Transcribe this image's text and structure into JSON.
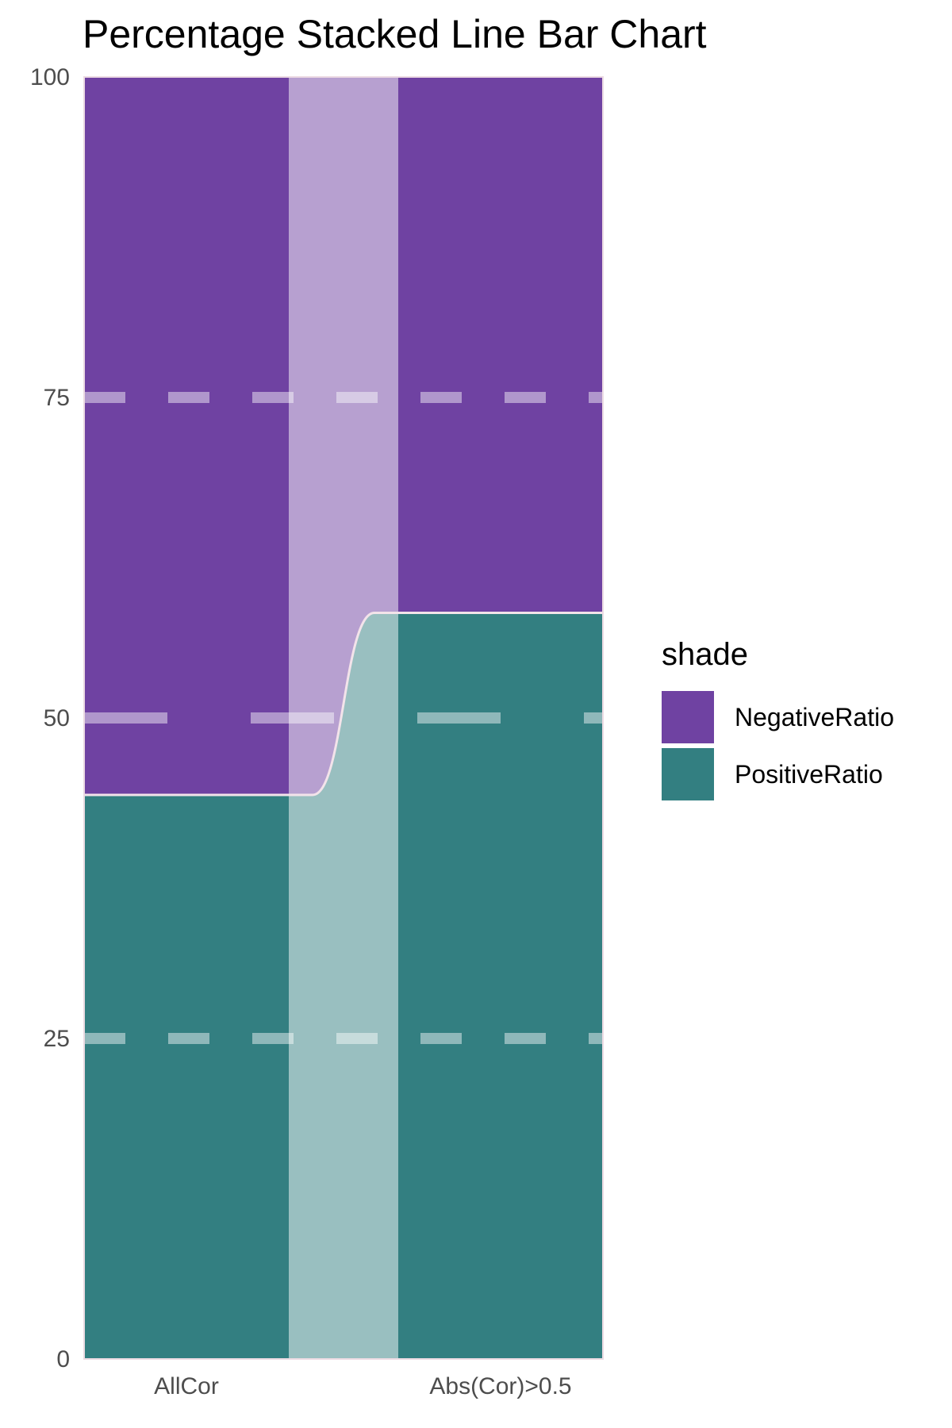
{
  "chart_data": {
    "type": "bar",
    "title": "Percentage Stacked Line Bar Chart",
    "categories": [
      "AllCor",
      "Abs(Cor)>0.5"
    ],
    "series": [
      {
        "name": "PositiveRatio",
        "values": [
          44,
          58.2
        ],
        "color": "#337f81"
      },
      {
        "name": "NegativeRatio",
        "values": [
          56,
          41.8
        ],
        "color": "#6f42a2"
      }
    ],
    "ylim": [
      0,
      100
    ],
    "yticks": [
      "0",
      "25",
      "50",
      "75",
      "100"
    ],
    "legend": {
      "title": "shade",
      "position": "right"
    },
    "grid": "dashed",
    "stacking": "percent"
  }
}
